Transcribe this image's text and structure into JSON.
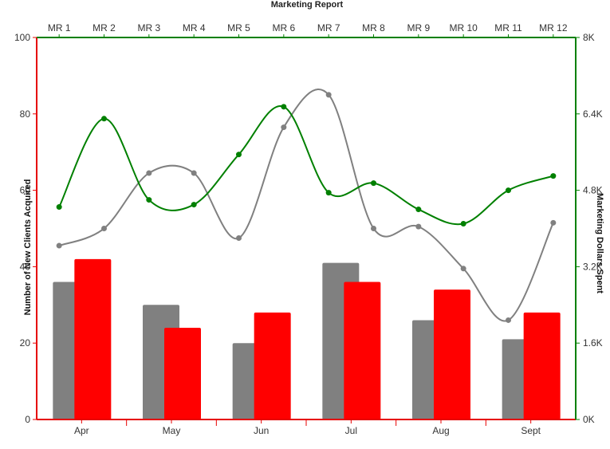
{
  "chart_data": {
    "type": "bar+line",
    "title": "Marketing Report",
    "left_axis": {
      "label": "Number of New Clients Acquired",
      "min": 0,
      "max": 100,
      "ticks": [
        0,
        20,
        40,
        60,
        80,
        100
      ],
      "tick_labels": [
        "0",
        "20",
        "40",
        "60",
        "80",
        "100"
      ],
      "color": "#e60000"
    },
    "right_axis": {
      "label": "Marketing Dollars Spent",
      "min": 0,
      "max": 8000,
      "ticks": [
        0,
        1600,
        3200,
        4800,
        6400,
        8000
      ],
      "tick_labels": [
        "0K",
        "1.6K",
        "3.2K",
        "4.8K",
        "6.4K",
        "8K"
      ],
      "color": "#008000"
    },
    "categories": [
      "Apr",
      "May",
      "Jun",
      "Jul",
      "Aug",
      "Sept"
    ],
    "bar_series": [
      {
        "color": "#808080",
        "values": [
          36,
          30,
          20,
          41,
          26,
          21
        ]
      },
      {
        "color": "#ff0000",
        "values": [
          42,
          24,
          28,
          36,
          34,
          28
        ]
      }
    ],
    "top_categories": [
      "MR 1",
      "MR 2",
      "MR 3",
      "MR 4",
      "MR 5",
      "MR 6",
      "MR 7",
      "MR 8",
      "MR 9",
      "MR 10",
      "MR 11",
      "MR 12"
    ],
    "line_series": [
      {
        "color": "#808080",
        "axis": "left",
        "values": [
          45.5,
          50,
          64.5,
          64.5,
          47.5,
          76.5,
          85,
          50,
          50.5,
          39.5,
          26,
          51.5
        ]
      },
      {
        "color": "#008000",
        "axis": "right",
        "values": [
          4450,
          6300,
          4600,
          4500,
          5550,
          6550,
          4750,
          4950,
          4400,
          4100,
          4800,
          5100
        ]
      }
    ],
    "grid": false
  }
}
